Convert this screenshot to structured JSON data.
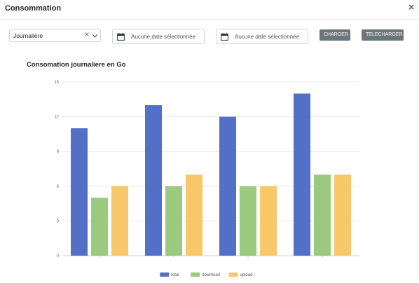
{
  "modal": {
    "title": "Consommation",
    "close_label": "×"
  },
  "controls": {
    "period_select": {
      "value": "Journalière",
      "clear_label": "×"
    },
    "date_start": {
      "placeholder": "Aucune date sélectionnée"
    },
    "date_end": {
      "placeholder": "Aucune date sélectionnée"
    },
    "charger_label": "CHARGER",
    "telecharger_label": "TELECHARGER"
  },
  "chart_title": "Consomation journaliere en Go",
  "colors": {
    "total": "#5470c6",
    "download": "#9bca7e",
    "upload": "#f7c76a"
  },
  "chart_data": {
    "type": "bar",
    "title": "Consomation journaliere en Go",
    "categories": [
      "",
      "",
      "",
      ""
    ],
    "series": [
      {
        "name": "total",
        "values": [
          11,
          13,
          12,
          14
        ]
      },
      {
        "name": "download",
        "values": [
          5,
          6,
          6,
          7
        ]
      },
      {
        "name": "upload",
        "values": [
          6,
          7,
          6,
          7
        ]
      }
    ],
    "ylim": [
      0,
      15
    ],
    "yticks": [
      0,
      3,
      6,
      9,
      12,
      15
    ],
    "xlabel": "",
    "ylabel": "",
    "grid": true,
    "legend": "bottom-center"
  }
}
